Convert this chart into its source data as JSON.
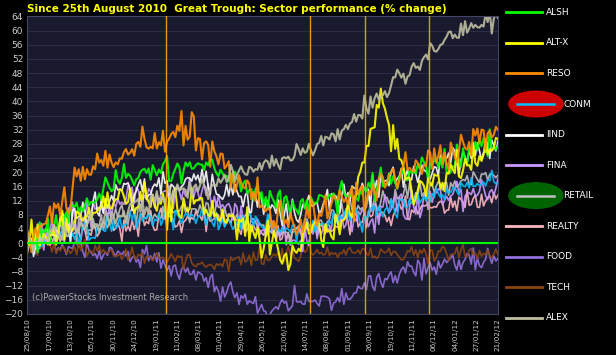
{
  "title": "Since 25th August 2010  Great Trough: Sector performance (% change)",
  "title_color": "#FFFF00",
  "background_color": "#000000",
  "plot_bg_color": "#1a1a2e",
  "watermark": "(c)PowerStocks Investment Research",
  "ylim": [
    -20,
    64
  ],
  "yticks": [
    -20,
    -16,
    -12,
    -8,
    -4,
    0,
    4,
    8,
    12,
    16,
    20,
    24,
    28,
    32,
    36,
    40,
    44,
    48,
    52,
    56,
    60,
    64
  ],
  "xtick_labels": [
    "25/08/10",
    "17/09/10",
    "13/10/10",
    "05/11/10",
    "30/11/10",
    "24/12/10",
    "19/01/11",
    "11/02/11",
    "08/03/11",
    "01/04/11",
    "29/04/11",
    "26/05/11",
    "21/06/11",
    "14/07/11",
    "08/08/11",
    "01/09/11",
    "26/09/11",
    "19/10/11",
    "11/11/11",
    "06/12/11",
    "04/01/12",
    "27/01/12",
    "21/02/12"
  ],
  "series": {
    "ALSH": {
      "color": "#00FF00",
      "lw": 1.5
    },
    "ALT-X": {
      "color": "#FFFF00",
      "lw": 1.5
    },
    "RESO": {
      "color": "#FF8C00",
      "lw": 1.5
    },
    "CONM": {
      "color": "#00BFFF",
      "lw": 1.2
    },
    "IIND": {
      "color": "#FFFFFF",
      "lw": 1.2
    },
    "FINA": {
      "color": "#CC99FF",
      "lw": 1.2
    },
    "RETAIL": {
      "color": "#C0C0C0",
      "lw": 1.2
    },
    "REALTY": {
      "color": "#FFB6C1",
      "lw": 1.2
    },
    "FOOD": {
      "color": "#9370DB",
      "lw": 1.2
    },
    "TECH": {
      "color": "#8B4513",
      "lw": 1.2
    },
    "ALEX": {
      "color": "#BEBEA0",
      "lw": 1.5
    }
  }
}
